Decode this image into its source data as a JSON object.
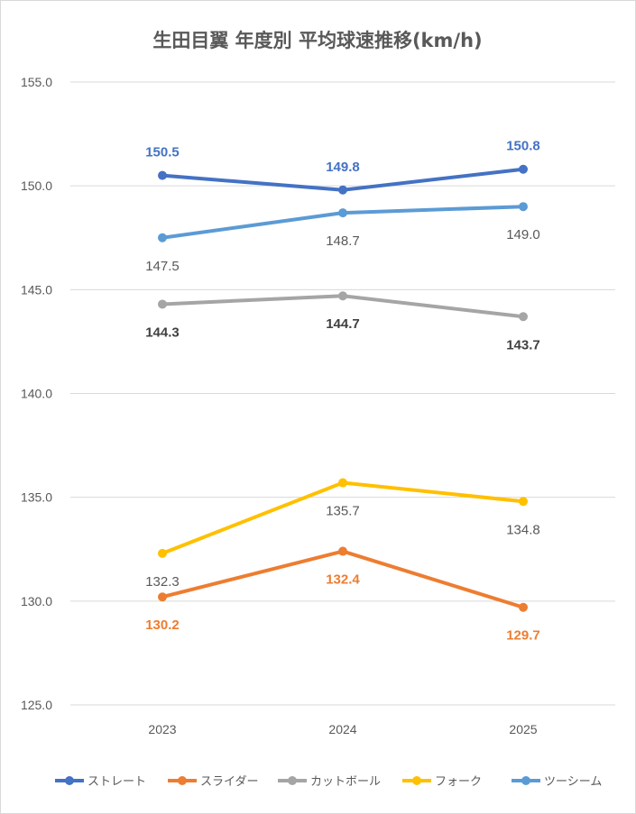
{
  "chart_data": {
    "type": "line",
    "title": "生田目翼 年度別 平均球速推移(km/h)",
    "categories": [
      "2023",
      "2024",
      "2025"
    ],
    "ylim": [
      125,
      155
    ],
    "yticks": [
      "125.0",
      "130.0",
      "135.0",
      "140.0",
      "145.0",
      "150.0",
      "155.0"
    ],
    "grid": true,
    "legend_position": "bottom",
    "series": [
      {
        "name": "ストレート",
        "values": [
          150.5,
          149.8,
          150.8
        ],
        "labels": [
          "150.5",
          "149.8",
          "150.8"
        ],
        "color": "#4472C4",
        "label_color": "#4472C4",
        "label_weight": "bold"
      },
      {
        "name": "スライダー",
        "values": [
          130.2,
          132.4,
          129.7
        ],
        "labels": [
          "130.2",
          "132.4",
          "129.7"
        ],
        "color": "#ED7D31",
        "label_color": "#ED7D31",
        "label_weight": "bold"
      },
      {
        "name": "カットボール",
        "values": [
          144.3,
          144.7,
          143.7
        ],
        "labels": [
          "144.3",
          "144.7",
          "143.7"
        ],
        "color": "#A5A5A5",
        "label_color": "#404040",
        "label_weight": "bold"
      },
      {
        "name": "フォーク",
        "values": [
          132.3,
          135.7,
          134.8
        ],
        "labels": [
          "132.3",
          "135.7",
          "134.8"
        ],
        "color": "#FFC000",
        "label_color": "#595959",
        "label_weight": "normal"
      },
      {
        "name": "ツーシーム",
        "values": [
          147.5,
          148.7,
          149.0
        ],
        "labels": [
          "147.5",
          "148.7",
          "149.0"
        ],
        "color": "#5B9BD5",
        "label_color": "#595959",
        "label_weight": "normal"
      }
    ]
  }
}
